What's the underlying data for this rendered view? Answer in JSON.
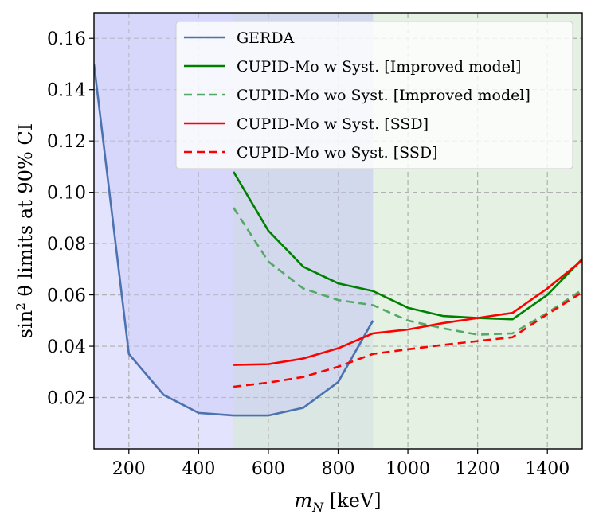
{
  "chart_data": {
    "type": "line",
    "xlabel": "m",
    "xlabel_sub": "N",
    "xlabel_unit": " [keV]",
    "ylabel_prefix": "sin",
    "ylabel_sup": "2",
    "ylabel_suffix": " θ limits at 90% CI",
    "xlim": [
      100,
      1500
    ],
    "ylim": [
      0.0,
      0.17
    ],
    "x_ticks": [
      200,
      400,
      600,
      800,
      1000,
      1200,
      1400
    ],
    "y_ticks": [
      0.02,
      0.04,
      0.06,
      0.08,
      0.1,
      0.12,
      0.14,
      0.16
    ],
    "grid": true,
    "legend_position": "top-right",
    "regions": [
      {
        "x0": 100,
        "x1": 900,
        "color": "#dcdcfc",
        "note": "GERDA excluded region"
      },
      {
        "x0": 500,
        "x1": 1500,
        "color": "#d6e9d4",
        "note": "CUPID-Mo excluded region"
      }
    ],
    "series": [
      {
        "name": "GERDA",
        "color": "#4c72b0",
        "style": "solid",
        "x": [
          100,
          200,
          300,
          400,
          500,
          600,
          700,
          800,
          900
        ],
        "y": [
          0.15,
          0.037,
          0.021,
          0.014,
          0.013,
          0.013,
          0.016,
          0.026,
          0.05
        ]
      },
      {
        "name": "CUPID-Mo w Syst. [Improved model]",
        "color": "#008000",
        "style": "solid",
        "x": [
          500,
          600,
          700,
          800,
          900,
          1000,
          1100,
          1200,
          1300,
          1400,
          1500
        ],
        "y": [
          0.108,
          0.085,
          0.071,
          0.0645,
          0.0615,
          0.055,
          0.0518,
          0.051,
          0.0505,
          0.06,
          0.074
        ]
      },
      {
        "name": "CUPID-Mo wo Syst. [Improved model]",
        "color": "#55a868",
        "style": "dashed",
        "x": [
          500,
          600,
          700,
          800,
          900,
          1000,
          1100,
          1200,
          1300,
          1400,
          1500
        ],
        "y": [
          0.094,
          0.073,
          0.0625,
          0.058,
          0.056,
          0.05,
          0.047,
          0.0445,
          0.045,
          0.053,
          0.062
        ]
      },
      {
        "name": "CUPID-Mo w Syst. [SSD]",
        "color": "#ff0000",
        "style": "solid",
        "x": [
          500,
          600,
          700,
          800,
          900,
          1000,
          1100,
          1200,
          1300,
          1400,
          1500
        ],
        "y": [
          0.0327,
          0.033,
          0.0352,
          0.0392,
          0.045,
          0.0465,
          0.049,
          0.051,
          0.053,
          0.0625,
          0.0735
        ]
      },
      {
        "name": "CUPID-Mo wo Syst. [SSD]",
        "color": "#ff0000",
        "style": "dashed",
        "x": [
          500,
          600,
          700,
          800,
          900,
          1000,
          1100,
          1200,
          1300,
          1400,
          1500
        ],
        "y": [
          0.0242,
          0.0258,
          0.028,
          0.032,
          0.037,
          0.0388,
          0.0405,
          0.042,
          0.0435,
          0.0525,
          0.061
        ]
      }
    ]
  }
}
